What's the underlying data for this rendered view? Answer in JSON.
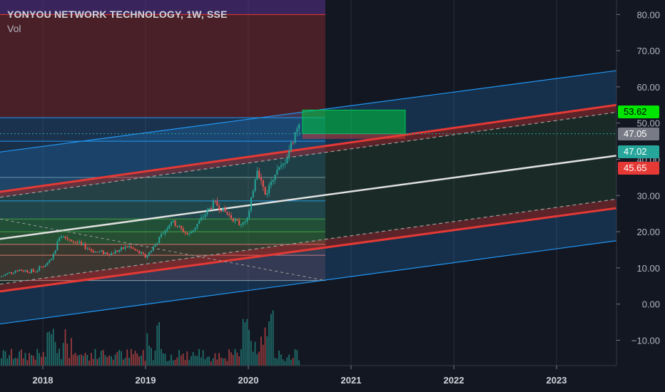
{
  "header": {
    "title": "YONYOU NETWORK TECHNOLOGY, 1W, SSE",
    "sub": "Vol"
  },
  "colors": {
    "background": "#131722",
    "up": "#26a69a",
    "down": "#ef5350",
    "blue": "#2196f3",
    "channel_red": "#e53935",
    "median": "#e0e0e0",
    "axis_text": "#b2b5be"
  },
  "price_badges": [
    {
      "value": "53.62",
      "price": 53.62,
      "bg": "#00e600",
      "fg": "#000000"
    },
    {
      "value": "47.05",
      "price": 47.05,
      "bg": "#787b86",
      "fg": "#ffffff"
    },
    {
      "value": "47.02",
      "price": 47.02,
      "bg": "#26a69a",
      "fg": "#ffffff"
    },
    {
      "value": "45.65",
      "price": 45.65,
      "bg": "#e53935",
      "fg": "#ffffff"
    }
  ],
  "chart_data": {
    "type": "candlestick",
    "x_axis": {
      "labels": [
        "2018",
        "2019",
        "2020",
        "2021",
        "2022",
        "2023"
      ],
      "range": [
        "2017-08",
        "2023-08"
      ]
    },
    "y_axis": {
      "labels": [
        "80.00",
        "70.00",
        "60.00",
        "50.00",
        "40.00",
        "30.00",
        "20.00",
        "10.00",
        "0.00",
        "−10.00"
      ],
      "range": [
        -17,
        84
      ]
    },
    "price_path": [
      [
        "2017-08",
        7.5
      ],
      [
        "2017-10",
        9.5
      ],
      [
        "2017-12",
        9
      ],
      [
        "2018-02",
        12
      ],
      [
        "2018-03",
        19
      ],
      [
        "2018-05",
        17
      ],
      [
        "2018-07",
        14.5
      ],
      [
        "2018-09",
        14
      ],
      [
        "2018-11",
        16
      ],
      [
        "2019-01",
        13
      ],
      [
        "2019-02",
        16
      ],
      [
        "2019-04",
        23
      ],
      [
        "2019-06",
        19
      ],
      [
        "2019-08",
        25
      ],
      [
        "2019-09",
        28
      ],
      [
        "2019-10",
        26
      ],
      [
        "2019-12",
        22
      ],
      [
        "2020-01",
        24
      ],
      [
        "2020-02",
        38
      ],
      [
        "2020-03",
        30
      ],
      [
        "2020-04",
        36
      ],
      [
        "2020-05",
        38
      ],
      [
        "2020-06",
        44
      ],
      [
        "2020-07",
        51
      ],
      [
        "2020-07",
        47
      ]
    ],
    "current_price": 47.02,
    "channel": {
      "outer_upper": [
        [
          "2017-08",
          42
        ],
        [
          "2023-08",
          64.5
        ]
      ],
      "upper": [
        [
          "2017-08",
          31
        ],
        [
          "2023-08",
          55
        ]
      ],
      "upper_dashed": [
        [
          "2017-08",
          29.5
        ],
        [
          "2023-08",
          53
        ]
      ],
      "median": [
        [
          "2017-08",
          18
        ],
        [
          "2023-08",
          41
        ]
      ],
      "lower_dashed": [
        [
          "2017-08",
          5.5
        ],
        [
          "2023-08",
          29
        ]
      ],
      "lower": [
        [
          "2017-08",
          3.5
        ],
        [
          "2023-08",
          26.5
        ]
      ],
      "outer_lower": [
        [
          "2017-08",
          -5.5
        ],
        [
          "2023-08",
          17.5
        ]
      ]
    },
    "fib_levels": [
      80,
      51.5,
      45,
      35,
      28.5,
      23.5,
      20,
      16.5,
      13.5,
      6.5
    ],
    "fib_box": {
      "x_start": "2017-08",
      "x_end": "2020-10",
      "y_top": 80,
      "y_bottom": 6.5
    },
    "target_box": {
      "x_start": "2020-07",
      "x_end": "2021-07",
      "y_top": 53.6,
      "y_bottom": 47.05
    },
    "risk_box": {
      "x_start": "2020-07",
      "x_end": "2021-07",
      "y_top": 47.05,
      "y_bottom": 45.65
    },
    "diagonal": [
      [
        "2017-08",
        23.5
      ],
      [
        "2020-10",
        6.5
      ]
    ],
    "volume_scale": {
      "y_bottom": -17,
      "max_height": 17
    }
  }
}
